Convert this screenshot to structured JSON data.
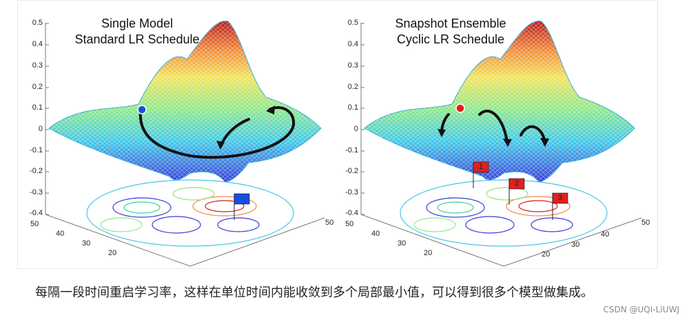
{
  "figure": {
    "left_panel": {
      "title_line1": "Single Model",
      "title_line2": "Standard LR Schedule",
      "z_ticks": [
        "0.5",
        "0.4",
        "0.3",
        "0.2",
        "0.1",
        "0",
        "-0.1",
        "-0.2",
        "-0.3",
        "-0.4"
      ],
      "x_ticks_left": [
        "50",
        "40",
        "30",
        "20"
      ],
      "x_tick_right": "50",
      "start_marker_color": "#1f4fd6",
      "flag_color": "#1a4de0"
    },
    "right_panel": {
      "title_line1": "Snapshot Ensemble",
      "title_line2": "Cyclic LR Schedule",
      "z_ticks": [
        "0.5",
        "0.4",
        "0.3",
        "0.2",
        "0.1",
        "0",
        "-0.1",
        "-0.2",
        "-0.3",
        "-0.4"
      ],
      "x_ticks_left": [
        "50",
        "40",
        "30",
        "20"
      ],
      "x_ticks_right": [
        "20",
        "30",
        "40",
        "50"
      ],
      "start_marker_color": "#e02020",
      "flags": [
        {
          "label": "1",
          "color": "#e02020"
        },
        {
          "label": "2",
          "color": "#e02020"
        },
        {
          "label": "3",
          "color": "#e02020"
        }
      ]
    }
  },
  "caption": {
    "text": "每隔一段时间重启学习率，这样在单位时间内能收敛到多个局部最小值，可以得到很多个模型做集成。"
  },
  "watermark": "CSDN @UQI-LIUWJ"
}
